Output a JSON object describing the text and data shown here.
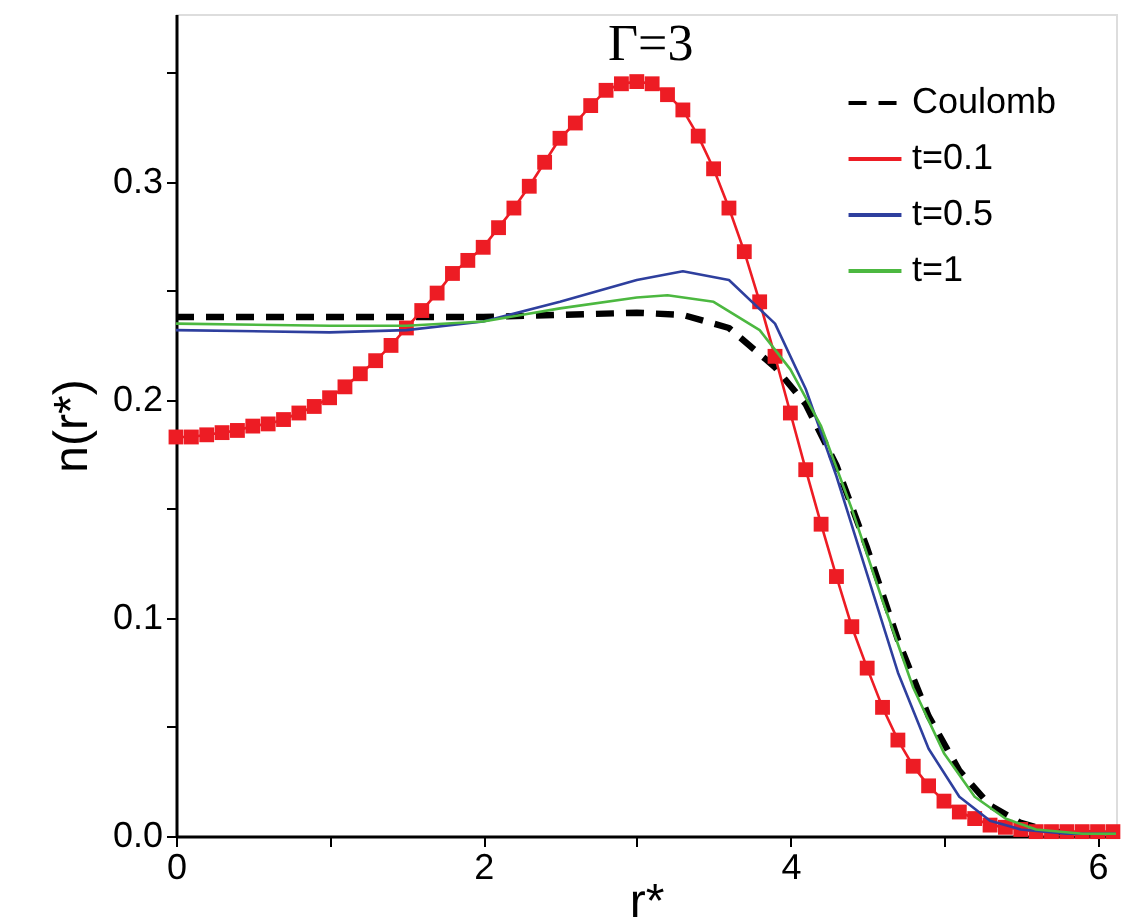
{
  "chart_data": {
    "type": "line",
    "title": "Γ=3",
    "xlabel": "r*",
    "ylabel": "n(r*)",
    "xlim": [
      0,
      6.12
    ],
    "ylim": [
      0,
      0.377
    ],
    "xticks": [
      0,
      {
        "value": 1,
        "label": null
      },
      2,
      {
        "value": 3,
        "label": null
      },
      4,
      {
        "value": 5,
        "label": null
      },
      6
    ],
    "yticks": [
      {
        "value": 0,
        "label": "0.0"
      },
      {
        "value": 0.05,
        "label": null
      },
      {
        "value": 0.1,
        "label": "0.1"
      },
      {
        "value": 0.15,
        "label": null
      },
      {
        "value": 0.2,
        "label": "0.2"
      },
      {
        "value": 0.25,
        "label": null
      },
      {
        "value": 0.3,
        "label": "0.3"
      },
      {
        "value": 0.35,
        "label": null
      }
    ],
    "legend": "top right",
    "grid": false,
    "series": [
      {
        "name": "Coulomb",
        "color": "#000000",
        "line_style": "dashed",
        "marker": "none",
        "x": [
          0,
          1,
          2,
          2.5,
          3,
          3.3,
          3.6,
          3.9,
          4.1,
          4.3,
          4.5,
          4.7,
          4.9,
          5.1,
          5.3,
          5.5,
          5.7,
          6.0,
          6.12
        ],
        "values": [
          0.238,
          0.238,
          0.238,
          0.239,
          0.24,
          0.239,
          0.233,
          0.215,
          0.198,
          0.17,
          0.132,
          0.09,
          0.055,
          0.03,
          0.014,
          0.006,
          0.002,
          0.001,
          0.001
        ]
      },
      {
        "name": "t=0.1",
        "color": "#ed1c24",
        "line_style": "solid",
        "marker": "square",
        "x": [
          0,
          0.1,
          0.2,
          0.3,
          0.4,
          0.5,
          0.6,
          0.7,
          0.8,
          0.9,
          1.0,
          1.1,
          1.2,
          1.3,
          1.4,
          1.5,
          1.6,
          1.7,
          1.8,
          1.9,
          2.0,
          2.1,
          2.2,
          2.3,
          2.4,
          2.5,
          2.6,
          2.7,
          2.8,
          2.9,
          3.0,
          3.1,
          3.2,
          3.3,
          3.4,
          3.5,
          3.6,
          3.7,
          3.8,
          3.9,
          4.0,
          4.1,
          4.2,
          4.3,
          4.4,
          4.5,
          4.6,
          4.7,
          4.8,
          4.9,
          5.0,
          5.1,
          5.2,
          5.3,
          5.4,
          5.5,
          5.6,
          5.7,
          5.8,
          5.9,
          6.0,
          6.1
        ],
        "values": [
          0.183,
          0.183,
          0.184,
          0.185,
          0.186,
          0.188,
          0.189,
          0.191,
          0.194,
          0.197,
          0.201,
          0.206,
          0.212,
          0.218,
          0.225,
          0.233,
          0.241,
          0.249,
          0.258,
          0.264,
          0.27,
          0.279,
          0.288,
          0.298,
          0.309,
          0.32,
          0.327,
          0.335,
          0.342,
          0.345,
          0.346,
          0.345,
          0.34,
          0.333,
          0.321,
          0.306,
          0.288,
          0.268,
          0.245,
          0.22,
          0.194,
          0.168,
          0.143,
          0.119,
          0.096,
          0.077,
          0.059,
          0.044,
          0.032,
          0.023,
          0.016,
          0.011,
          0.008,
          0.005,
          0.004,
          0.003,
          0.002,
          0.002,
          0.002,
          0.002,
          0.002,
          0.002
        ]
      },
      {
        "name": "t=0.5",
        "color": "#2e3f9e",
        "line_style": "solid",
        "marker": "none",
        "x": [
          0,
          1,
          1.5,
          2,
          2.5,
          3,
          3.3,
          3.6,
          3.9,
          4.1,
          4.3,
          4.5,
          4.7,
          4.9,
          5.1,
          5.3,
          5.5,
          5.8,
          6.12
        ],
        "values": [
          0.232,
          0.231,
          0.232,
          0.236,
          0.245,
          0.255,
          0.259,
          0.255,
          0.235,
          0.205,
          0.165,
          0.12,
          0.075,
          0.04,
          0.018,
          0.007,
          0.003,
          0.001,
          0.001
        ]
      },
      {
        "name": "t=1",
        "color": "#4cb840",
        "line_style": "solid",
        "marker": "none",
        "x": [
          0,
          1,
          1.5,
          2,
          2.5,
          3,
          3.2,
          3.5,
          3.8,
          4.0,
          4.2,
          4.4,
          4.6,
          4.8,
          5.0,
          5.2,
          5.4,
          5.6,
          5.9,
          6.12
        ],
        "values": [
          0.235,
          0.234,
          0.234,
          0.236,
          0.242,
          0.247,
          0.248,
          0.245,
          0.232,
          0.214,
          0.188,
          0.15,
          0.108,
          0.068,
          0.038,
          0.018,
          0.008,
          0.003,
          0.001,
          0.001
        ]
      }
    ]
  }
}
